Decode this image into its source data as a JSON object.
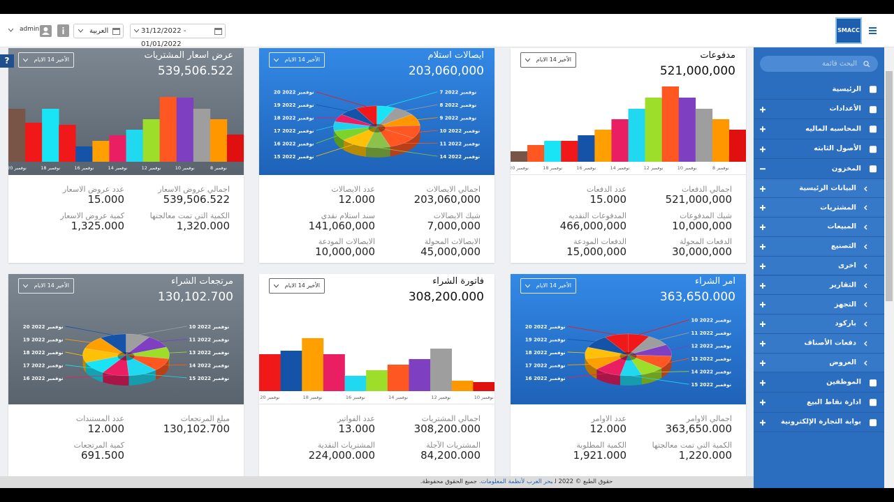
{
  "header": {
    "logo": "SMACC",
    "user": "admin",
    "language": "العربية",
    "date_range": "31/12/2022 - 01/01/2022",
    "help": "?"
  },
  "sidebar": {
    "search_placeholder": "البحث قائمة",
    "items": [
      {
        "label": "الرئيسية"
      },
      {
        "label": "الأعدادات",
        "toggle": "plus"
      },
      {
        "label": "المحاسبه الماليه",
        "toggle": "plus"
      },
      {
        "label": "الأصول الثابته",
        "toggle": "plus"
      },
      {
        "label": "المخزون",
        "toggle": "minus"
      },
      {
        "label": "البيانات الرئيسية",
        "toggle": "plus",
        "sub": true
      },
      {
        "label": "المشتريات",
        "toggle": "plus",
        "sub": true
      },
      {
        "label": "المبيعات",
        "toggle": "plus",
        "sub": true
      },
      {
        "label": "التصنيع",
        "toggle": "plus",
        "sub": true
      },
      {
        "label": "اخرى",
        "toggle": "plus",
        "sub": true
      },
      {
        "label": "التقارير",
        "toggle": "plus",
        "sub": true
      },
      {
        "label": "التجهز",
        "toggle": "plus",
        "sub": true
      },
      {
        "label": "باركود",
        "toggle": "plus",
        "sub": true
      },
      {
        "label": "دفعات الأصناف",
        "toggle": "plus",
        "sub": true
      },
      {
        "label": "العروض",
        "toggle": "plus",
        "sub": true
      },
      {
        "label": "الموظفين",
        "toggle": "plus"
      },
      {
        "label": "ادارة نقاط البيع",
        "toggle": "plus"
      },
      {
        "label": "بوابة التجارة الإلكترونية",
        "toggle": "plus"
      }
    ]
  },
  "cards": [
    {
      "title": "مدفوعات",
      "value": "521,000,000",
      "period": "الأخير 14 الايام",
      "theme": "white",
      "chart": {
        "type": "bar",
        "categories": [
          "20 نوفمبر",
          null,
          "18 نوفمبر",
          null,
          "16 نوفمبر",
          null,
          "14 نوفمبر",
          null,
          "12 نوفمبر",
          null,
          "10 نوفمبر",
          null,
          "8 نوفمبر",
          null
        ],
        "values": [
          15,
          24,
          30,
          30,
          38,
          46,
          61,
          76,
          92,
          108,
          92,
          76,
          61,
          46
        ],
        "colors": [
          "#795548",
          "#ff5722",
          "#18e4f5",
          "#f01818",
          "#1553a8",
          "#ffa000",
          "#e91e63",
          "#20d8f0",
          "#9cde2a",
          "#ff5722",
          "#7e3fc1",
          "#9e9e9e",
          "#ff9800",
          "#e01010"
        ]
      },
      "stats": [
        [
          {
            "label": "اجمالي الدفعات",
            "value": "521,000,000"
          },
          {
            "label": "عدد الدفعات",
            "value": "15.000"
          }
        ],
        [
          {
            "label": "شيك المدفوعات",
            "value": "10,000,000"
          },
          {
            "label": "المدفوعات النقديه",
            "value": "466,000,000"
          }
        ],
        [
          {
            "label": "الدفعات المحولة",
            "value": "30,000,000"
          },
          {
            "label": "الدفعات المودعة",
            "value": "15,000,000"
          }
        ]
      ]
    },
    {
      "title": "ايصالات استلام",
      "value": "203,060,000",
      "period": "الأخير 14 الايام",
      "theme": "blue",
      "chart": {
        "type": "pie",
        "categories": [
          "7 نوفمبر 2022",
          "8 نوفمبر 2022",
          "9 نوفمبر 2022",
          "10 نوفمبر 2022",
          "11 نوفمبر 2022",
          "14 نوفمبر 2022",
          "15 نوفمبر 2022",
          "16 نوفمبر 2022",
          "17 نوفمبر 2022",
          "18 نوفمبر 2022",
          "19 نوفمبر 2022",
          "20 نوفمبر 2022"
        ],
        "values": [
          7,
          8,
          9,
          10,
          11,
          9,
          10,
          8,
          7,
          6,
          7,
          8
        ],
        "colors": [
          "#18e4f5",
          "#9e9e9e",
          "#ff9800",
          "#ff5722",
          "#ff5722",
          "#8bc34a",
          "#ffc107",
          "#7cd32a",
          "#20d0f0",
          "#e91e63",
          "#1553a8",
          "#f01818"
        ]
      },
      "stats": [
        [
          {
            "label": "اجمالي الايصالات",
            "value": "203,060,000"
          },
          {
            "label": "عدد الايصالات",
            "value": "12.000"
          }
        ],
        [
          {
            "label": "شيك الايصالات",
            "value": "7,000,000"
          },
          {
            "label": "سند استلام نقدي",
            "value": "141,060,000"
          }
        ],
        [
          {
            "label": "الايصالات المحولة",
            "value": "45,000,000"
          },
          {
            "label": "الايصالات المودعة",
            "value": "10,000,000"
          }
        ]
      ]
    },
    {
      "title": "عرض اسعار المشتريات",
      "value": "539,506.522",
      "period": "الأخير 14 الايام",
      "theme": "gray",
      "chart": {
        "type": "bar",
        "categories": [
          "20 نوفمبر",
          null,
          "18 نوفمبر",
          null,
          "16 نوفمبر",
          null,
          "14 نوفمبر",
          null,
          "12 نوفمبر",
          null,
          "10 نوفمبر",
          null,
          "8 نوفمبر",
          null
        ],
        "values": [
          76,
          56,
          76,
          53,
          22,
          30,
          38,
          46,
          61,
          93,
          92,
          76,
          61,
          39
        ],
        "colors": [
          "#795548",
          "#f01818",
          "#18e4f5",
          "#f01818",
          "#1553a8",
          "#ffa000",
          "#e91e63",
          "#20d8f0",
          "#9cde2a",
          "#ff5722",
          "#7e3fc1",
          "#9e9e9e",
          "#ff9800",
          "#e01010"
        ]
      },
      "stats": [
        [
          {
            "label": "اجمالي عروض الاسعار",
            "value": "539,506.522"
          },
          {
            "label": "عدد عروض الاسعار",
            "value": "15.000"
          }
        ],
        [
          {
            "label": "الكمية التي تمت معالجتها",
            "value": "1,320.000"
          },
          {
            "label": "كمية عروض الاسعار",
            "value": "1,325.000"
          }
        ]
      ]
    },
    {
      "title": "امر الشراء",
      "value": "363,650.000",
      "period": "الأخير 14 الايام",
      "theme": "blue",
      "chart": {
        "type": "pie",
        "categories": [
          "10 نوفمبر 2022",
          "11 نوفمبر 2022",
          "12 نوفمبر 2022",
          "13 نوفمبر 2022",
          "14 نوفمبر 2022",
          "15 نوفمبر 2022",
          "16 نوفمبر 2022",
          "17 نوفمبر 2022",
          "18 نوفمبر 2022",
          "19 نوفمبر 2022",
          "20 نوفمبر 2022"
        ],
        "values": [
          8,
          9,
          9,
          10,
          9,
          8,
          10,
          9,
          9,
          10,
          9
        ],
        "colors": [
          "#f01818",
          "#9e9e9e",
          "#7e3fc1",
          "#ff5722",
          "#9cde2a",
          "#20d8f0",
          "#e91e63",
          "#ffa000",
          "#ffc107",
          "#1553a8",
          "#f01818"
        ]
      },
      "stats": [
        [
          {
            "label": "اجمالي الاوامر",
            "value": "363,650.000"
          },
          {
            "label": "عدد الاوامر",
            "value": "12.000"
          }
        ],
        [
          {
            "label": "الكمية التي تمت معالجتها",
            "value": "1,220.000"
          },
          {
            "label": "الكمية المطلوبة",
            "value": "1,921.000"
          }
        ]
      ]
    },
    {
      "title": "فاتورة الشراء",
      "value": "308,200.000",
      "period": "الأخير 14 الايام",
      "theme": "white",
      "chart": {
        "type": "bar",
        "categories": [
          "20 نوفمبر",
          null,
          "18 نوفمبر",
          null,
          "16 نوفمبر",
          null,
          "14 نوفمبر",
          null,
          "12 نوفمبر",
          null,
          "10 نوفمبر"
        ],
        "values": [
          53,
          58,
          76,
          53,
          22,
          30,
          38,
          46,
          61,
          15,
          13
        ],
        "colors": [
          "#f01818",
          "#1553a8",
          "#ffa000",
          "#e91e63",
          "#20d8f0",
          "#9cde2a",
          "#ff5722",
          "#7e3fc1",
          "#9e9e9e",
          "#ff9800",
          "#e01010"
        ]
      },
      "stats": [
        [
          {
            "label": "اجمالي المشتريات",
            "value": "308,200.000"
          },
          {
            "label": "عدد الفواتير",
            "value": "13.000"
          }
        ],
        [
          {
            "label": "المشتريات الآجلة",
            "value": "84,200.000"
          },
          {
            "label": "المشتريات النقدية",
            "value": "224,000.000"
          }
        ]
      ]
    },
    {
      "title": "مرتجعات الشراء",
      "value": "130,102.700",
      "period": "الأخير 14 الايام",
      "theme": "gray",
      "chart": {
        "type": "pie",
        "categories": [
          "10 نوفمبر 2022",
          "11 نوفمبر 2022",
          "13 نوفمبر 2022",
          "14 نوفمبر 2022",
          "15 نوفمبر 2022",
          "16 نوفمبر 2022",
          "17 نوفمبر 2022",
          "18 نوفمبر 2022",
          "19 نوفمبر 2022",
          "20 نوفمبر 2022"
        ],
        "values": [
          9,
          10,
          9,
          10,
          11,
          10,
          10,
          11,
          10,
          10
        ],
        "colors": [
          "#9e9e9e",
          "#7e3fc1",
          "#9cde2a",
          "#ff5722",
          "#20d8f0",
          "#e91e63",
          "#18e4f5",
          "#ffc107",
          "#ffa000",
          "#1553a8"
        ]
      },
      "stats": [
        [
          {
            "label": "مبلغ المرتجعات",
            "value": "130,102.700"
          },
          {
            "label": "عدد المستندات",
            "value": "12.000"
          }
        ],
        [
          null,
          {
            "label": "كمية المرتجعات",
            "value": "691.500"
          }
        ]
      ]
    }
  ],
  "footer": {
    "prefix": "حقوق الطبع © 2022 ل",
    "link": "بحر العرب لأنظمة المعلومات.",
    "suffix": "جميع الحقوق محفوظة."
  }
}
